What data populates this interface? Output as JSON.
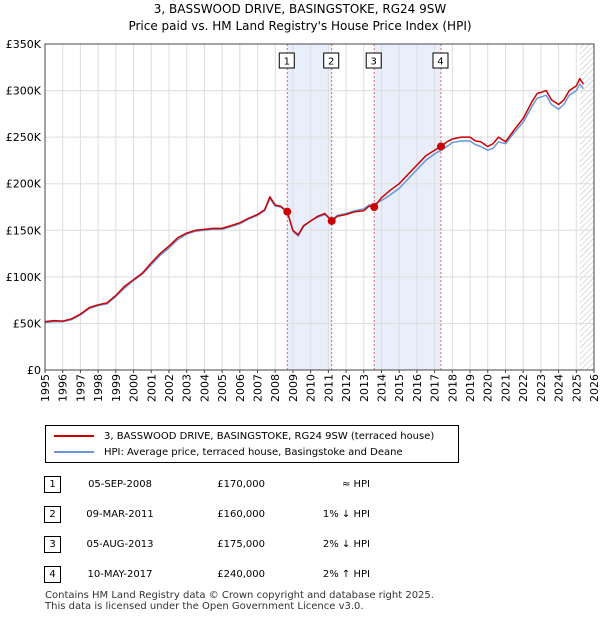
{
  "title_line1": "3, BASSWOOD DRIVE, BASINGSTOKE, RG24 9SW",
  "title_line2": "Price paid vs. HM Land Registry's House Price Index (HPI)",
  "colors": {
    "property": "#cc0000",
    "hpi": "#6a96d8",
    "shade": "#e8eefa",
    "marker_line": "#e06666"
  },
  "legend": {
    "property_label": "3, BASSWOOD DRIVE, BASINGSTOKE, RG24 9SW (terraced house)",
    "hpi_label": "HPI: Average price, terraced house, Basingstoke and Deane"
  },
  "sales": [
    {
      "num": "1",
      "date": "05-SEP-2008",
      "price": "£170,000",
      "hpi": "≈ HPI"
    },
    {
      "num": "2",
      "date": "09-MAR-2011",
      "price": "£160,000",
      "hpi": "1% ↓ HPI"
    },
    {
      "num": "3",
      "date": "05-AUG-2013",
      "price": "£175,000",
      "hpi": "2% ↓ HPI"
    },
    {
      "num": "4",
      "date": "10-MAY-2017",
      "price": "£240,000",
      "hpi": "2% ↑ HPI"
    }
  ],
  "footer": {
    "line1": "Contains HM Land Registry data © Crown copyright and database right 2025.",
    "line2": "This data is licensed under the Open Government Licence v3.0."
  },
  "chart_data": {
    "type": "line",
    "title": "3, BASSWOOD DRIVE, BASINGSTOKE, RG24 9SW — Price paid vs. HM Land Registry's House Price Index (HPI)",
    "xlabel": "",
    "ylabel": "",
    "xlim": [
      1995,
      2026
    ],
    "ylim": [
      0,
      350000
    ],
    "yticks": [
      0,
      50000,
      100000,
      150000,
      200000,
      250000,
      300000,
      350000
    ],
    "ytick_labels": [
      "£0",
      "£50K",
      "£100K",
      "£150K",
      "£200K",
      "£250K",
      "£300K",
      "£350K"
    ],
    "xticks": [
      1995,
      1996,
      1997,
      1998,
      1999,
      2000,
      2001,
      2002,
      2003,
      2004,
      2005,
      2006,
      2007,
      2008,
      2009,
      2010,
      2011,
      2012,
      2013,
      2014,
      2015,
      2016,
      2017,
      2018,
      2019,
      2020,
      2021,
      2022,
      2023,
      2024,
      2025,
      2026
    ],
    "shaded_periods": [
      [
        2008.68,
        2011.19
      ],
      [
        2013.59,
        2017.36
      ]
    ],
    "forecast_start": 2025.2,
    "series": [
      {
        "name": "3, BASSWOOD DRIVE, BASINGSTOKE, RG24 9SW (terraced house)",
        "x": [
          1995.0,
          1995.5,
          1996.0,
          1996.5,
          1997.0,
          1997.5,
          1998.0,
          1998.5,
          1999.0,
          1999.5,
          2000.0,
          2000.5,
          2001.0,
          2001.5,
          2002.0,
          2002.5,
          2003.0,
          2003.5,
          2004.0,
          2004.5,
          2005.0,
          2005.5,
          2006.0,
          2006.5,
          2007.0,
          2007.4,
          2007.7,
          2008.0,
          2008.3,
          2008.68,
          2009.0,
          2009.3,
          2009.6,
          2010.0,
          2010.4,
          2010.8,
          2011.19,
          2011.5,
          2012.0,
          2012.5,
          2013.0,
          2013.3,
          2013.59,
          2014.0,
          2014.5,
          2015.0,
          2015.5,
          2016.0,
          2016.5,
          2017.0,
          2017.36,
          2017.7,
          2018.0,
          2018.5,
          2019.0,
          2019.3,
          2019.6,
          2020.0,
          2020.3,
          2020.6,
          2021.0,
          2021.5,
          2022.0,
          2022.5,
          2022.8,
          2023.0,
          2023.3,
          2023.6,
          2024.0,
          2024.3,
          2024.6,
          2025.0,
          2025.2,
          2025.4
        ],
        "y": [
          52000,
          53000,
          52500,
          55000,
          60000,
          67000,
          70000,
          72000,
          80000,
          90000,
          97000,
          104000,
          115000,
          125000,
          133000,
          142000,
          147000,
          150000,
          151000,
          152000,
          152000,
          155000,
          158000,
          163000,
          167000,
          172000,
          186000,
          177000,
          176000,
          170000,
          150000,
          145000,
          155000,
          160000,
          165000,
          168000,
          160000,
          165000,
          167000,
          170000,
          171000,
          176000,
          175000,
          185000,
          193000,
          200000,
          210000,
          220000,
          230000,
          236000,
          240000,
          245000,
          248000,
          250000,
          250000,
          246000,
          245000,
          240000,
          243000,
          250000,
          245000,
          258000,
          270000,
          288000,
          297000,
          298000,
          300000,
          290000,
          285000,
          290000,
          300000,
          305000,
          313000,
          307000
        ]
      },
      {
        "name": "HPI: Average price, terraced house, Basingstoke and Deane",
        "x": [
          1995.0,
          1995.5,
          1996.0,
          1996.5,
          1997.0,
          1997.5,
          1998.0,
          1998.5,
          1999.0,
          1999.5,
          2000.0,
          2000.5,
          2001.0,
          2001.5,
          2002.0,
          2002.5,
          2003.0,
          2003.5,
          2004.0,
          2004.5,
          2005.0,
          2005.5,
          2006.0,
          2006.5,
          2007.0,
          2007.4,
          2007.7,
          2008.0,
          2008.3,
          2008.68,
          2009.0,
          2009.3,
          2009.6,
          2010.0,
          2010.4,
          2010.8,
          2011.19,
          2011.5,
          2012.0,
          2012.5,
          2013.0,
          2013.3,
          2013.59,
          2014.0,
          2014.5,
          2015.0,
          2015.5,
          2016.0,
          2016.5,
          2017.0,
          2017.36,
          2017.7,
          2018.0,
          2018.5,
          2019.0,
          2019.3,
          2019.6,
          2020.0,
          2020.3,
          2020.6,
          2021.0,
          2021.5,
          2022.0,
          2022.5,
          2022.8,
          2023.0,
          2023.3,
          2023.6,
          2024.0,
          2024.3,
          2024.6,
          2025.0,
          2025.2,
          2025.4
        ],
        "y": [
          51000,
          52000,
          52000,
          54000,
          59000,
          66000,
          69000,
          71000,
          79000,
          88000,
          96000,
          103000,
          113000,
          123000,
          131000,
          140000,
          146000,
          149000,
          150000,
          151000,
          151000,
          154000,
          157000,
          162000,
          166000,
          171000,
          184000,
          176000,
          175000,
          170000,
          149000,
          144000,
          154000,
          160000,
          164000,
          167000,
          161000,
          166000,
          168000,
          171000,
          173000,
          177000,
          178000,
          182000,
          188000,
          195000,
          205000,
          215000,
          225000,
          232000,
          236000,
          240000,
          244000,
          246000,
          246000,
          242000,
          240000,
          236000,
          238000,
          245000,
          243000,
          255000,
          266000,
          283000,
          292000,
          293000,
          295000,
          285000,
          280000,
          285000,
          295000,
          300000,
          307000,
          302000
        ]
      }
    ],
    "sale_markers": [
      {
        "label": "1",
        "x": 2008.68,
        "y": 170000
      },
      {
        "label": "2",
        "x": 2011.19,
        "y": 160000
      },
      {
        "label": "3",
        "x": 2013.59,
        "y": 175000
      },
      {
        "label": "4",
        "x": 2017.36,
        "y": 240000
      }
    ],
    "legend_position": "bottom-left"
  }
}
